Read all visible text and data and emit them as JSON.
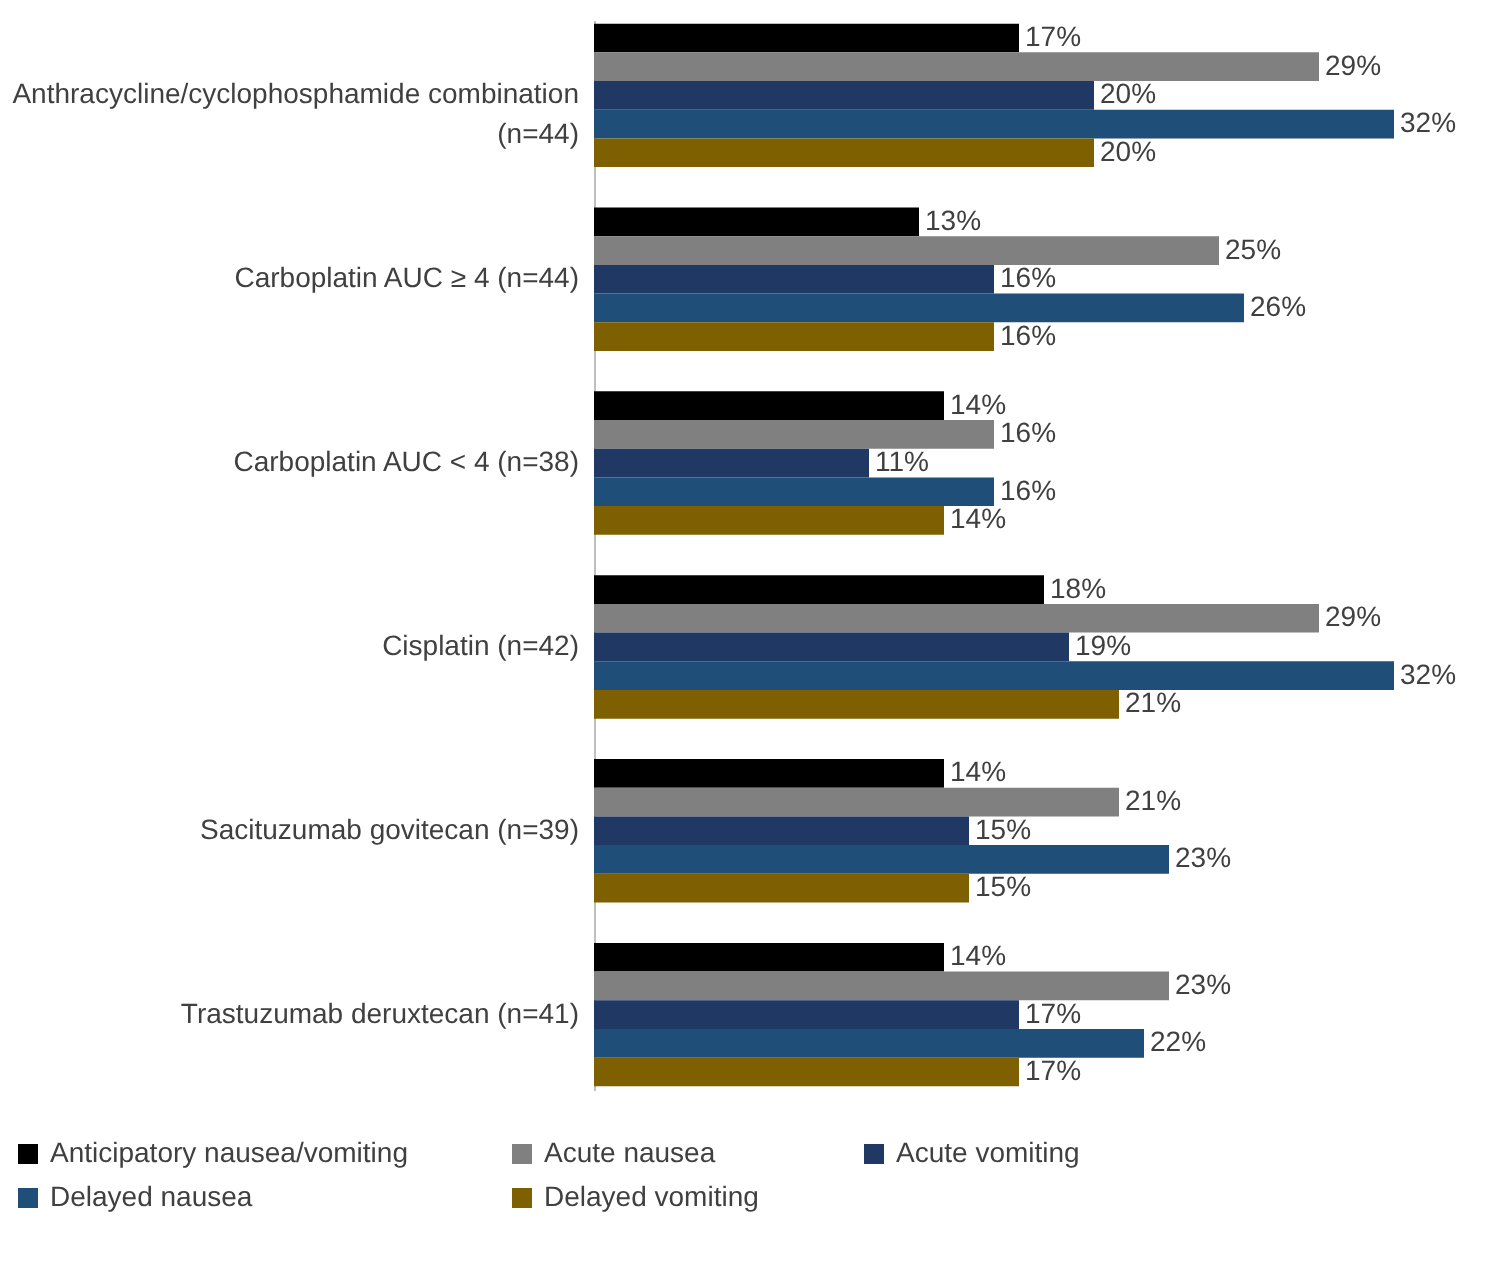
{
  "chart_data": {
    "type": "bar",
    "orientation": "horizontal",
    "categories": [
      "Anthracycline/cyclophosphamide combination (n=44)",
      "Carboplatin AUC ≥ 4 (n=44)",
      "Carboplatin AUC < 4 (n=38)",
      "Cisplatin (n=42)",
      "Sacituzumab govitecan (n=39)",
      "Trastuzumab deruxtecan (n=41)"
    ],
    "series": [
      {
        "name": "Anticipatory nausea/vomiting",
        "color": "#000000",
        "values": [
          17,
          13,
          14,
          18,
          14,
          14
        ],
        "value_labels": [
          "17%",
          "13%",
          "14%",
          "18%",
          "14%",
          "14%"
        ]
      },
      {
        "name": "Acute nausea",
        "color": "#808080",
        "values": [
          29,
          25,
          16,
          29,
          21,
          23
        ],
        "value_labels": [
          "29%",
          "25%",
          "16%",
          "29%",
          "21%",
          "23%"
        ]
      },
      {
        "name": "Acute vomiting",
        "color": "#203864",
        "values": [
          20,
          16,
          11,
          19,
          15,
          17
        ],
        "value_labels": [
          "20%",
          "16%",
          "11%",
          "19%",
          "15%",
          "17%"
        ]
      },
      {
        "name": "Delayed nausea",
        "color": "#1f4e79",
        "values": [
          32,
          26,
          16,
          32,
          23,
          22
        ],
        "value_labels": [
          "32%",
          "26%",
          "16%",
          "32%",
          "23%",
          "22%"
        ]
      },
      {
        "name": "Delayed vomiting",
        "color": "#7f6000",
        "values": [
          20,
          16,
          14,
          21,
          15,
          17
        ],
        "value_labels": [
          "20%",
          "16%",
          "14%",
          "21%",
          "15%",
          "17%"
        ]
      }
    ],
    "legend": "bottom",
    "tick_labels": "y"
  }
}
